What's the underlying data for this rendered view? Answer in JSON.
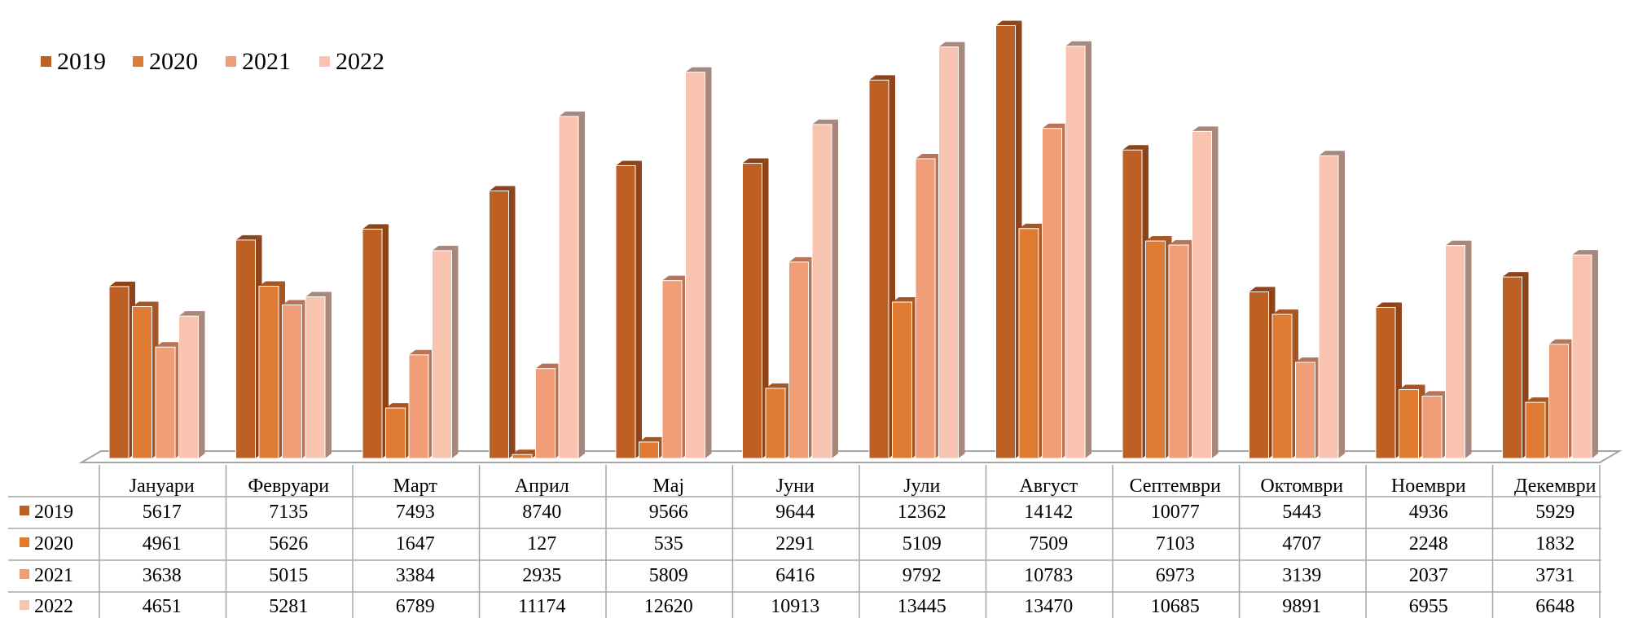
{
  "chart_data": {
    "type": "bar",
    "title": "",
    "xlabel": "",
    "ylabel": "",
    "ylim": [
      0,
      14500
    ],
    "grid": false,
    "legend_position": "top-left",
    "categories": [
      "Јануари",
      "Февруари",
      "Март",
      "Април",
      "Мај",
      "Јуни",
      "Јули",
      "Август",
      "Септември",
      "Октомври",
      "Ноември",
      "Декември"
    ],
    "series": [
      {
        "name": "2019",
        "color": "#BE5F24",
        "shade": "#8E4418",
        "values": [
          5617,
          7135,
          7493,
          8740,
          9566,
          9644,
          12362,
          14142,
          10077,
          5443,
          4936,
          5929
        ]
      },
      {
        "name": "2020",
        "color": "#E07B34",
        "shade": "#A65623",
        "values": [
          4961,
          5626,
          1647,
          127,
          535,
          2291,
          5109,
          7509,
          7103,
          4707,
          2248,
          1832
        ]
      },
      {
        "name": "2021",
        "color": "#F09E78",
        "shade": "#B97458",
        "values": [
          3638,
          5015,
          3384,
          2935,
          5809,
          6416,
          9792,
          10783,
          6973,
          3139,
          2037,
          3731
        ]
      },
      {
        "name": "2022",
        "color": "#F8C4B0",
        "shade": "#A8877C",
        "values": [
          4651,
          5281,
          6789,
          11174,
          12620,
          10913,
          13445,
          13470,
          10685,
          9891,
          6955,
          6648
        ]
      }
    ],
    "data_table": true
  }
}
